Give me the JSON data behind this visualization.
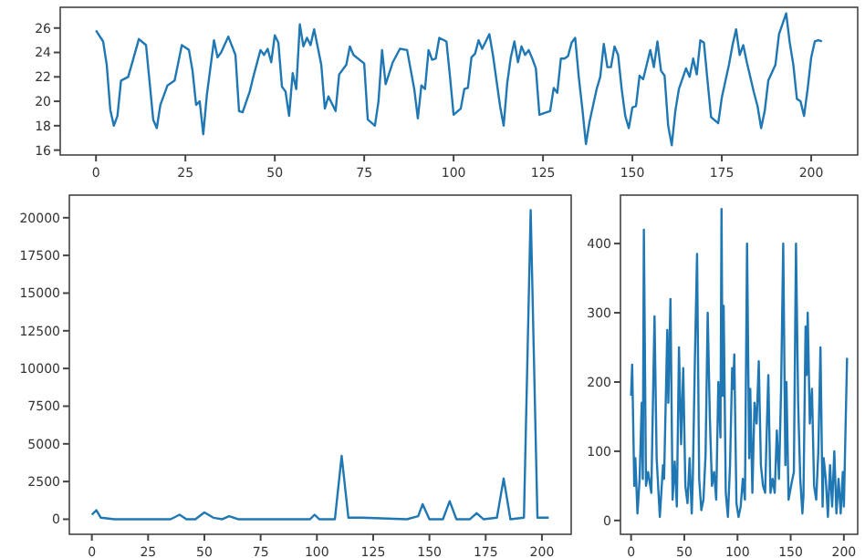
{
  "chart_data": [
    {
      "type": "line",
      "xlim": [
        -10,
        213
      ],
      "ylim": [
        15.6,
        27.7
      ],
      "xticks": [
        0,
        25,
        50,
        75,
        100,
        125,
        150,
        175,
        200
      ],
      "yticks": [
        16,
        18,
        20,
        22,
        24,
        26
      ],
      "grid": false,
      "series": [
        {
          "color": "#1f77b4",
          "x": [
            0,
            2,
            3,
            4,
            5,
            6,
            7,
            9,
            12,
            14,
            16,
            17,
            18,
            20,
            22,
            24,
            26,
            27,
            28,
            29,
            30,
            31,
            33,
            34,
            35,
            37,
            39,
            40,
            41,
            43,
            44,
            46,
            47,
            48,
            49,
            50,
            51,
            52,
            53,
            54,
            55,
            56,
            57,
            58,
            59,
            60,
            61,
            63,
            64,
            65,
            67,
            68,
            70,
            71,
            72,
            75,
            76,
            78,
            79,
            80,
            81,
            83,
            85,
            87,
            89,
            90,
            91,
            92,
            93,
            94,
            95,
            96,
            98,
            99,
            100,
            102,
            103,
            104,
            105,
            106,
            107,
            108,
            110,
            111,
            113,
            114,
            115,
            116,
            117,
            118,
            119,
            120,
            121,
            122,
            123,
            124,
            126,
            127,
            128,
            129,
            130,
            131,
            132,
            133,
            134,
            135,
            136,
            137,
            138,
            140,
            141,
            142,
            143,
            144,
            145,
            146,
            147,
            148,
            149,
            150,
            151,
            152,
            153,
            154,
            155,
            156,
            157,
            158,
            159,
            160,
            161,
            162,
            163,
            165,
            166,
            167,
            168,
            169,
            170,
            171,
            172,
            174,
            175,
            177,
            178,
            179,
            180,
            181,
            182,
            184,
            185,
            186,
            187,
            188,
            190,
            191,
            193,
            194,
            195,
            196,
            197,
            198,
            199,
            200,
            201,
            202,
            203
          ],
          "values": [
            25.8,
            24.9,
            23,
            19.3,
            18,
            18.8,
            21.7,
            22,
            25.1,
            24.6,
            18.5,
            17.8,
            19.7,
            21.3,
            21.7,
            24.6,
            24.2,
            22.5,
            19.7,
            20,
            17.3,
            20.5,
            25,
            23.6,
            24,
            25.3,
            23.8,
            19.2,
            19.1,
            20.8,
            22,
            24.2,
            23.8,
            24.3,
            23.2,
            25.4,
            24.8,
            21.2,
            20.8,
            18.8,
            22.3,
            21,
            26.3,
            24.5,
            25.2,
            24.6,
            25.9,
            23,
            19.4,
            20.4,
            19.2,
            22.2,
            23,
            24.5,
            23.8,
            23.1,
            18.5,
            18,
            20,
            24.2,
            21.4,
            23.2,
            24.3,
            24.2,
            21,
            18.6,
            21.3,
            21,
            24.2,
            23.4,
            23.5,
            25.2,
            24.9,
            22,
            18.9,
            19.4,
            21,
            21.1,
            23.6,
            23.9,
            25,
            24.3,
            25.5,
            23.8,
            19.6,
            18,
            21.5,
            23.6,
            24.9,
            23.2,
            24.5,
            23.8,
            24.2,
            23.5,
            22.7,
            18.9,
            19.1,
            19.2,
            21.1,
            20.7,
            23.5,
            23.5,
            23.7,
            24.8,
            25.2,
            22,
            19.4,
            16.5,
            18.3,
            21,
            22,
            24.7,
            22.8,
            22.8,
            24.5,
            23.8,
            21,
            18.8,
            17.8,
            19.5,
            19.6,
            22.1,
            21.8,
            23,
            24.2,
            22.8,
            24.9,
            22.5,
            22.1,
            18,
            16.4,
            19.2,
            21,
            22.7,
            22,
            23.5,
            22.2,
            25,
            24.8,
            21.7,
            18.7,
            18.2,
            20.3,
            23,
            24.6,
            25.9,
            23.8,
            24.6,
            23.2,
            20.7,
            19.6,
            17.8,
            19.2,
            21.7,
            23,
            25.5,
            27.2,
            24.8,
            23,
            20.2,
            20,
            18.8,
            21,
            23.6,
            24.9,
            25,
            24.9
          ]
        }
      ]
    },
    {
      "type": "line",
      "xlim": [
        -10,
        213
      ],
      "ylim": [
        -1000,
        21500
      ],
      "xticks": [
        0,
        25,
        50,
        75,
        100,
        125,
        150,
        175,
        200
      ],
      "yticks": [
        0,
        2500,
        5000,
        7500,
        10000,
        12500,
        15000,
        17500,
        20000
      ],
      "grid": false,
      "series": [
        {
          "color": "#1f77b4",
          "x": [
            0,
            2,
            4,
            10,
            35,
            39,
            42,
            46,
            50,
            54,
            58,
            61,
            65,
            97,
            99,
            101,
            108,
            111,
            114,
            120,
            140,
            145,
            147,
            150,
            156,
            159,
            162,
            168,
            171,
            174,
            180,
            183,
            186,
            192,
            195,
            198,
            203
          ],
          "values": [
            300,
            600,
            100,
            0,
            0,
            300,
            0,
            0,
            450,
            100,
            0,
            200,
            0,
            0,
            300,
            0,
            0,
            4200,
            100,
            100,
            0,
            200,
            1000,
            0,
            0,
            1200,
            0,
            0,
            400,
            0,
            100,
            2700,
            0,
            100,
            20500,
            100,
            100
          ]
        }
      ]
    },
    {
      "type": "line",
      "xlim": [
        -10,
        213
      ],
      "ylim": [
        -20,
        470
      ],
      "xticks": [
        0,
        50,
        100,
        150,
        200
      ],
      "yticks": [
        0,
        100,
        200,
        300,
        400
      ],
      "grid": false,
      "series": [
        {
          "color": "#1f77b4",
          "x": [
            0,
            1,
            3,
            4,
            6,
            8,
            10,
            11,
            12,
            14,
            16,
            19,
            22,
            24,
            27,
            30,
            31,
            34,
            35,
            37,
            39,
            41,
            43,
            45,
            47,
            49,
            51,
            53,
            55,
            57,
            58,
            60,
            62,
            64,
            66,
            68,
            70,
            72,
            74,
            76,
            78,
            80,
            82,
            84,
            85,
            86,
            87,
            89,
            91,
            93,
            95,
            96,
            97,
            99,
            101,
            103,
            105,
            107,
            109,
            111,
            112,
            114,
            116,
            118,
            120,
            122,
            124,
            126,
            127,
            129,
            131,
            133,
            135,
            137,
            139,
            141,
            143,
            145,
            146,
            148,
            151,
            153,
            155,
            157,
            159,
            161,
            162,
            164,
            165,
            166,
            168,
            170,
            172,
            174,
            176,
            178,
            180,
            181,
            183,
            185,
            187,
            189,
            191,
            193,
            195,
            197,
            199,
            200,
            203
          ],
          "values": [
            180,
            225,
            50,
            90,
            10,
            60,
            170,
            60,
            420,
            50,
            70,
            40,
            295,
            90,
            5,
            80,
            60,
            275,
            170,
            320,
            30,
            85,
            20,
            250,
            110,
            220,
            50,
            25,
            90,
            10,
            60,
            235,
            385,
            60,
            15,
            30,
            95,
            300,
            150,
            50,
            70,
            30,
            200,
            120,
            450,
            180,
            310,
            40,
            5,
            80,
            220,
            190,
            240,
            25,
            5,
            20,
            60,
            30,
            400,
            90,
            190,
            40,
            170,
            140,
            230,
            80,
            50,
            40,
            100,
            210,
            40,
            60,
            40,
            130,
            60,
            190,
            400,
            80,
            200,
            30,
            55,
            70,
            400,
            170,
            60,
            10,
            35,
            280,
            210,
            300,
            140,
            190,
            50,
            30,
            100,
            250,
            20,
            90,
            60,
            5,
            80,
            20,
            100,
            10,
            60,
            10,
            70,
            20,
            235
          ]
        }
      ]
    }
  ]
}
